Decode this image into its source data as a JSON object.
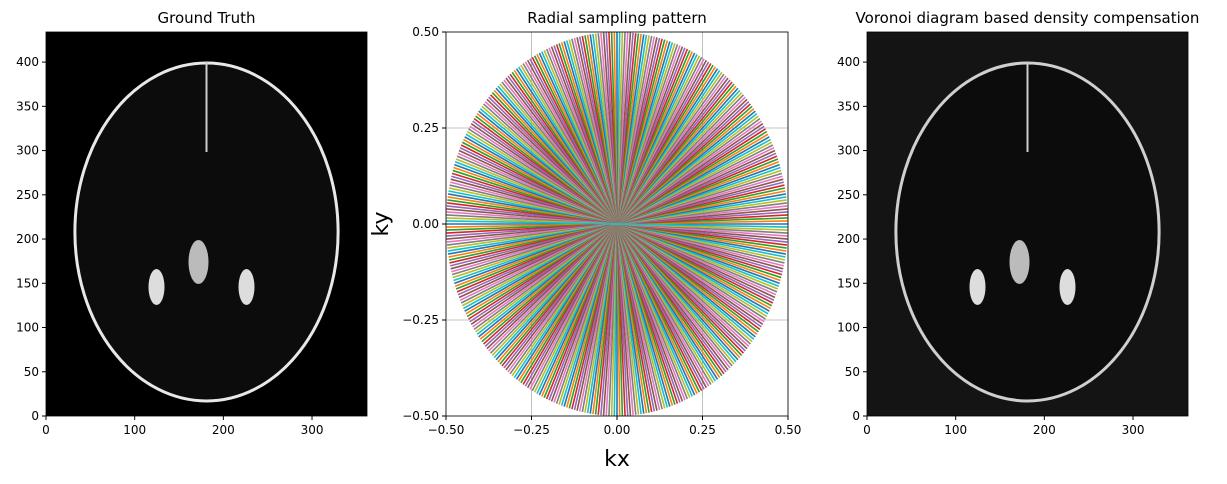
{
  "chart_data": [
    {
      "type": "image",
      "title": "Ground Truth",
      "shade": "#000000",
      "edge": "#e8e8e8",
      "xlim": [
        0,
        362
      ],
      "xticks": [
        0,
        100,
        200,
        300
      ],
      "ylim": [
        0,
        434
      ],
      "yticks": [
        0,
        50,
        100,
        150,
        200,
        250,
        300,
        350,
        400
      ]
    },
    {
      "type": "radial",
      "title": "Radial sampling pattern",
      "xlabel": "kx",
      "ylabel": "ky",
      "grid": true,
      "spokes": 200,
      "radius": 0.5,
      "colors": [
        "#1f77b4",
        "#ff7f0e",
        "#2ca02c",
        "#d62728",
        "#9467bd",
        "#8c564b",
        "#e377c2",
        "#7f7f7f",
        "#bcbd22",
        "#17becf"
      ],
      "xlim": [
        -0.5,
        0.5
      ],
      "xticks": [
        {
          "value": -0.5,
          "label": "−0.50"
        },
        {
          "value": -0.25,
          "label": "−0.25"
        },
        {
          "value": 0,
          "label": "0.00"
        },
        {
          "value": 0.25,
          "label": "0.25"
        },
        {
          "value": 0.5,
          "label": "0.50"
        }
      ],
      "ylim": [
        -0.5,
        0.5
      ],
      "yticks": [
        {
          "value": -0.5,
          "label": "−0.50"
        },
        {
          "value": -0.25,
          "label": "−0.25"
        },
        {
          "value": 0,
          "label": "0.00"
        },
        {
          "value": 0.25,
          "label": "0.25"
        },
        {
          "value": 0.5,
          "label": "0.50"
        }
      ]
    },
    {
      "type": "image",
      "title": "Voronoi diagram based density compensation",
      "shade": "#141414",
      "edge": "#cfcfcf",
      "xlim": [
        0,
        362
      ],
      "xticks": [
        0,
        100,
        200,
        300
      ],
      "ylim": [
        0,
        434
      ],
      "yticks": [
        0,
        50,
        100,
        150,
        200,
        250,
        300,
        350,
        400
      ]
    }
  ]
}
